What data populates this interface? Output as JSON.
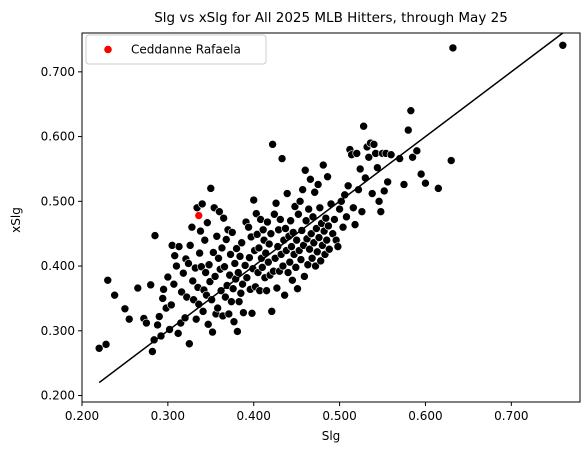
{
  "chart_data": {
    "type": "scatter",
    "title": "Slg vs xSlg for All 2025 MLB Hitters, through May 25",
    "xlabel": "Slg",
    "ylabel": "xSlg",
    "xlim": [
      0.2,
      0.78
    ],
    "ylim": [
      0.19,
      0.76
    ],
    "xticks": [
      "0.200",
      "0.300",
      "0.400",
      "0.500",
      "0.600",
      "0.700"
    ],
    "yticks": [
      "0.200",
      "0.300",
      "0.400",
      "0.500",
      "0.600",
      "0.700"
    ],
    "grid": false,
    "legend": {
      "position": "top-left",
      "entries": [
        {
          "label": "Ceddanne Rafaela",
          "color": "#ff0000"
        }
      ]
    },
    "colors": {
      "points": "#000000",
      "highlight": "#ff0000",
      "reference_line": "#000000"
    },
    "reference_line": {
      "x": [
        0.22,
        0.76
      ],
      "y": [
        0.22,
        0.76
      ]
    },
    "highlight": {
      "name": "Ceddanne Rafaela",
      "x": 0.336,
      "y": 0.478
    },
    "series": [
      {
        "points": [
          [
            0.22,
            0.273
          ],
          [
            0.228,
            0.279
          ],
          [
            0.23,
            0.378
          ],
          [
            0.238,
            0.355
          ],
          [
            0.25,
            0.334
          ],
          [
            0.255,
            0.318
          ],
          [
            0.265,
            0.366
          ],
          [
            0.272,
            0.319
          ],
          [
            0.275,
            0.312
          ],
          [
            0.28,
            0.371
          ],
          [
            0.282,
            0.268
          ],
          [
            0.284,
            0.286
          ],
          [
            0.285,
            0.447
          ],
          [
            0.288,
            0.309
          ],
          [
            0.29,
            0.322
          ],
          [
            0.292,
            0.292
          ],
          [
            0.294,
            0.35
          ],
          [
            0.295,
            0.364
          ],
          [
            0.298,
            0.335
          ],
          [
            0.3,
            0.383
          ],
          [
            0.302,
            0.302
          ],
          [
            0.304,
            0.34
          ],
          [
            0.305,
            0.432
          ],
          [
            0.307,
            0.372
          ],
          [
            0.308,
            0.416
          ],
          [
            0.31,
            0.4
          ],
          [
            0.312,
            0.296
          ],
          [
            0.313,
            0.43
          ],
          [
            0.315,
            0.312
          ],
          [
            0.316,
            0.36
          ],
          [
            0.318,
            0.389
          ],
          [
            0.32,
            0.32
          ],
          [
            0.321,
            0.411
          ],
          [
            0.322,
            0.352
          ],
          [
            0.324,
            0.404
          ],
          [
            0.325,
            0.28
          ],
          [
            0.326,
            0.432
          ],
          [
            0.328,
            0.46
          ],
          [
            0.329,
            0.377
          ],
          [
            0.33,
            0.348
          ],
          [
            0.332,
            0.397
          ],
          [
            0.333,
            0.318
          ],
          [
            0.334,
            0.49
          ],
          [
            0.335,
            0.367
          ],
          [
            0.336,
            0.341
          ],
          [
            0.337,
            0.42
          ],
          [
            0.338,
            0.454
          ],
          [
            0.339,
            0.399
          ],
          [
            0.34,
            0.496
          ],
          [
            0.341,
            0.33
          ],
          [
            0.342,
            0.363
          ],
          [
            0.343,
            0.44
          ],
          [
            0.344,
            0.39
          ],
          [
            0.345,
            0.355
          ],
          [
            0.346,
            0.467
          ],
          [
            0.347,
            0.31
          ],
          [
            0.348,
            0.402
          ],
          [
            0.349,
            0.376
          ],
          [
            0.35,
            0.52
          ],
          [
            0.351,
            0.348
          ],
          [
            0.352,
            0.298
          ],
          [
            0.353,
            0.421
          ],
          [
            0.354,
            0.49
          ],
          [
            0.355,
            0.384
          ],
          [
            0.356,
            0.326
          ],
          [
            0.357,
            0.446
          ],
          [
            0.358,
            0.335
          ],
          [
            0.359,
            0.412
          ],
          [
            0.36,
            0.484
          ],
          [
            0.361,
            0.395
          ],
          [
            0.362,
            0.362
          ],
          [
            0.363,
            0.428
          ],
          [
            0.364,
            0.323
          ],
          [
            0.365,
            0.474
          ],
          [
            0.366,
            0.399
          ],
          [
            0.367,
            0.352
          ],
          [
            0.368,
            0.441
          ],
          [
            0.369,
            0.37
          ],
          [
            0.37,
            0.456
          ],
          [
            0.371,
            0.326
          ],
          [
            0.372,
            0.386
          ],
          [
            0.373,
            0.418
          ],
          [
            0.374,
            0.345
          ],
          [
            0.375,
            0.452
          ],
          [
            0.376,
            0.365
          ],
          [
            0.377,
            0.314
          ],
          [
            0.378,
            0.404
          ],
          [
            0.379,
            0.38
          ],
          [
            0.38,
            0.427
          ],
          [
            0.381,
            0.299
          ],
          [
            0.382,
            0.39
          ],
          [
            0.383,
            0.345
          ],
          [
            0.384,
            0.415
          ],
          [
            0.385,
            0.358
          ],
          [
            0.386,
            0.436
          ],
          [
            0.387,
            0.372
          ],
          [
            0.388,
            0.328
          ],
          [
            0.39,
            0.401
          ],
          [
            0.391,
            0.468
          ],
          [
            0.392,
            0.382
          ],
          [
            0.394,
            0.46
          ],
          [
            0.395,
            0.413
          ],
          [
            0.396,
            0.364
          ],
          [
            0.397,
            0.445
          ],
          [
            0.398,
            0.327
          ],
          [
            0.399,
            0.396
          ],
          [
            0.4,
            0.502
          ],
          [
            0.401,
            0.424
          ],
          [
            0.402,
            0.368
          ],
          [
            0.403,
            0.481
          ],
          [
            0.404,
            0.449
          ],
          [
            0.405,
            0.39
          ],
          [
            0.406,
            0.428
          ],
          [
            0.407,
            0.362
          ],
          [
            0.408,
            0.472
          ],
          [
            0.409,
            0.412
          ],
          [
            0.41,
            0.398
          ],
          [
            0.411,
            0.456
          ],
          [
            0.412,
            0.44
          ],
          [
            0.413,
            0.382
          ],
          [
            0.414,
            0.42
          ],
          [
            0.415,
            0.362
          ],
          [
            0.416,
            0.468
          ],
          [
            0.417,
            0.406
          ],
          [
            0.418,
            0.434
          ],
          [
            0.419,
            0.386
          ],
          [
            0.42,
            0.45
          ],
          [
            0.421,
            0.33
          ],
          [
            0.422,
            0.588
          ],
          [
            0.423,
            0.392
          ],
          [
            0.424,
            0.48
          ],
          [
            0.425,
            0.412
          ],
          [
            0.426,
            0.497
          ],
          [
            0.427,
            0.366
          ],
          [
            0.428,
            0.43
          ],
          [
            0.429,
            0.456
          ],
          [
            0.43,
            0.392
          ],
          [
            0.431,
            0.472
          ],
          [
            0.432,
            0.418
          ],
          [
            0.433,
            0.566
          ],
          [
            0.434,
            0.4
          ],
          [
            0.435,
            0.44
          ],
          [
            0.436,
            0.355
          ],
          [
            0.437,
            0.458
          ],
          [
            0.438,
            0.424
          ],
          [
            0.439,
            0.512
          ],
          [
            0.44,
            0.39
          ],
          [
            0.441,
            0.446
          ],
          [
            0.442,
            0.406
          ],
          [
            0.443,
            0.47
          ],
          [
            0.444,
            0.43
          ],
          [
            0.445,
            0.378
          ],
          [
            0.446,
            0.452
          ],
          [
            0.447,
            0.418
          ],
          [
            0.448,
            0.492
          ],
          [
            0.449,
            0.398
          ],
          [
            0.45,
            0.44
          ],
          [
            0.451,
            0.365
          ],
          [
            0.452,
            0.48
          ],
          [
            0.453,
            0.424
          ],
          [
            0.454,
            0.5
          ],
          [
            0.455,
            0.41
          ],
          [
            0.456,
            0.455
          ],
          [
            0.457,
            0.518
          ],
          [
            0.458,
            0.432
          ],
          [
            0.459,
            0.384
          ],
          [
            0.46,
            0.548
          ],
          [
            0.461,
            0.47
          ],
          [
            0.462,
            0.442
          ],
          [
            0.463,
            0.402
          ],
          [
            0.464,
            0.488
          ],
          [
            0.465,
            0.426
          ],
          [
            0.466,
            0.534
          ],
          [
            0.467,
            0.45
          ],
          [
            0.468,
            0.412
          ],
          [
            0.469,
            0.476
          ],
          [
            0.47,
            0.436
          ],
          [
            0.471,
            0.514
          ],
          [
            0.472,
            0.4
          ],
          [
            0.473,
            0.458
          ],
          [
            0.474,
            0.422
          ],
          [
            0.475,
            0.526
          ],
          [
            0.476,
            0.444
          ],
          [
            0.477,
            0.49
          ],
          [
            0.478,
            0.408
          ],
          [
            0.479,
            0.466
          ],
          [
            0.48,
            0.432
          ],
          [
            0.481,
            0.556
          ],
          [
            0.482,
            0.454
          ],
          [
            0.483,
            0.418
          ],
          [
            0.484,
            0.474
          ],
          [
            0.485,
            0.44
          ],
          [
            0.486,
            0.538
          ],
          [
            0.487,
            0.462
          ],
          [
            0.488,
            0.426
          ],
          [
            0.49,
            0.496
          ],
          [
            0.492,
            0.45
          ],
          [
            0.494,
            0.472
          ],
          [
            0.496,
            0.44
          ],
          [
            0.498,
            0.43
          ],
          [
            0.5,
            0.488
          ],
          [
            0.502,
            0.5
          ],
          [
            0.504,
            0.46
          ],
          [
            0.506,
            0.51
          ],
          [
            0.508,
            0.476
          ],
          [
            0.51,
            0.524
          ],
          [
            0.512,
            0.58
          ],
          [
            0.514,
            0.572
          ],
          [
            0.516,
            0.49
          ],
          [
            0.518,
            0.464
          ],
          [
            0.52,
            0.574
          ],
          [
            0.522,
            0.518
          ],
          [
            0.524,
            0.55
          ],
          [
            0.526,
            0.484
          ],
          [
            0.528,
            0.616
          ],
          [
            0.53,
            0.536
          ],
          [
            0.532,
            0.584
          ],
          [
            0.534,
            0.568
          ],
          [
            0.536,
            0.59
          ],
          [
            0.538,
            0.512
          ],
          [
            0.54,
            0.588
          ],
          [
            0.542,
            0.574
          ],
          [
            0.544,
            0.552
          ],
          [
            0.546,
            0.5
          ],
          [
            0.548,
            0.484
          ],
          [
            0.55,
            0.574
          ],
          [
            0.552,
            0.516
          ],
          [
            0.554,
            0.574
          ],
          [
            0.556,
            0.53
          ],
          [
            0.56,
            0.572
          ],
          [
            0.57,
            0.566
          ],
          [
            0.575,
            0.526
          ],
          [
            0.58,
            0.61
          ],
          [
            0.583,
            0.64
          ],
          [
            0.585,
            0.568
          ],
          [
            0.59,
            0.578
          ],
          [
            0.595,
            0.542
          ],
          [
            0.6,
            0.528
          ],
          [
            0.615,
            0.52
          ],
          [
            0.63,
            0.563
          ],
          [
            0.632,
            0.737
          ],
          [
            0.76,
            0.741
          ]
        ]
      }
    ]
  }
}
